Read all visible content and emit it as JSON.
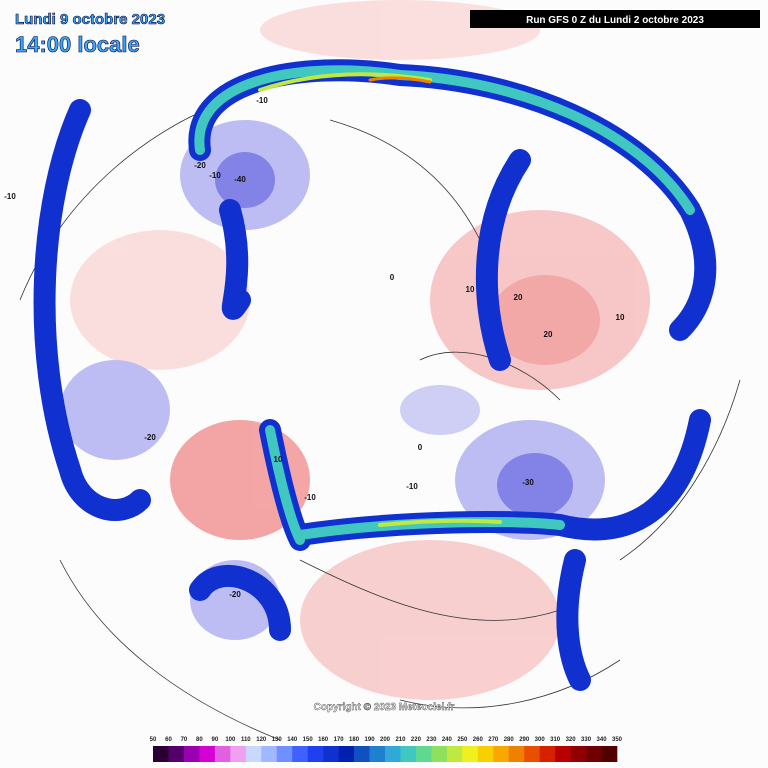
{
  "header": {
    "date": "Lundi 9 octobre 2023",
    "time": "14:00 locale",
    "run": "Run GFS 0 Z du Lundi 2 octobre 2023"
  },
  "copyright": "Copyright © 2023 Meteociel.fr",
  "contour_labels": [
    -40,
    -20,
    -10,
    -10,
    0,
    10,
    20,
    20,
    10,
    -30,
    -20,
    -20,
    -10,
    10,
    0,
    -10,
    -10
  ],
  "colorbar": {
    "labels": [
      50,
      60,
      70,
      80,
      90,
      100,
      110,
      120,
      130,
      140,
      150,
      160,
      170,
      180,
      190,
      200,
      210,
      220,
      230,
      240,
      250,
      260,
      270,
      280,
      290,
      300,
      310,
      320,
      330,
      340,
      350
    ],
    "colors": [
      "#2a0033",
      "#55006a",
      "#9a00b0",
      "#d400d4",
      "#e060e0",
      "#f0a0f0",
      "#c8d8ff",
      "#a0b8ff",
      "#7090ff",
      "#4060ff",
      "#2040f0",
      "#1030d0",
      "#0020b0",
      "#1050c0",
      "#2080d0",
      "#30a8d8",
      "#40c8c0",
      "#60d890",
      "#90e060",
      "#c0e840",
      "#f0f020",
      "#f8d000",
      "#f8a800",
      "#f08000",
      "#e85000",
      "#d82000",
      "#b80000",
      "#900000",
      "#700000",
      "#500000"
    ]
  }
}
